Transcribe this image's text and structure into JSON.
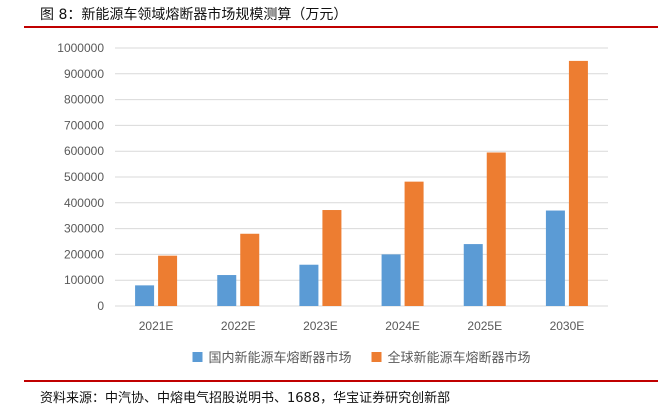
{
  "figure": {
    "title": "图 8：新能源车领域熔断器市场规模测算（万元）",
    "source": "资料来源：中汽协、中熔电气招股说明书、1688，华宝证券研究创新部"
  },
  "chart_data": {
    "type": "bar",
    "categories": [
      "2021E",
      "2022E",
      "2023E",
      "2024E",
      "2025E",
      "2030E"
    ],
    "series": [
      {
        "name": "国内新能源车熔断器市场",
        "color": "#5b9bd5",
        "values": [
          80000,
          120000,
          160000,
          200000,
          240000,
          370000
        ]
      },
      {
        "name": "全球新能源车熔断器市场",
        "color": "#ed7d31",
        "values": [
          195000,
          280000,
          372000,
          482000,
          595000,
          950000
        ]
      }
    ],
    "yticks": [
      0,
      100000,
      200000,
      300000,
      400000,
      500000,
      600000,
      700000,
      800000,
      900000,
      1000000
    ],
    "ylim": [
      0,
      1000000
    ],
    "grid": true,
    "legend_position": "bottom-center",
    "title": "",
    "xlabel": "",
    "ylabel": ""
  }
}
